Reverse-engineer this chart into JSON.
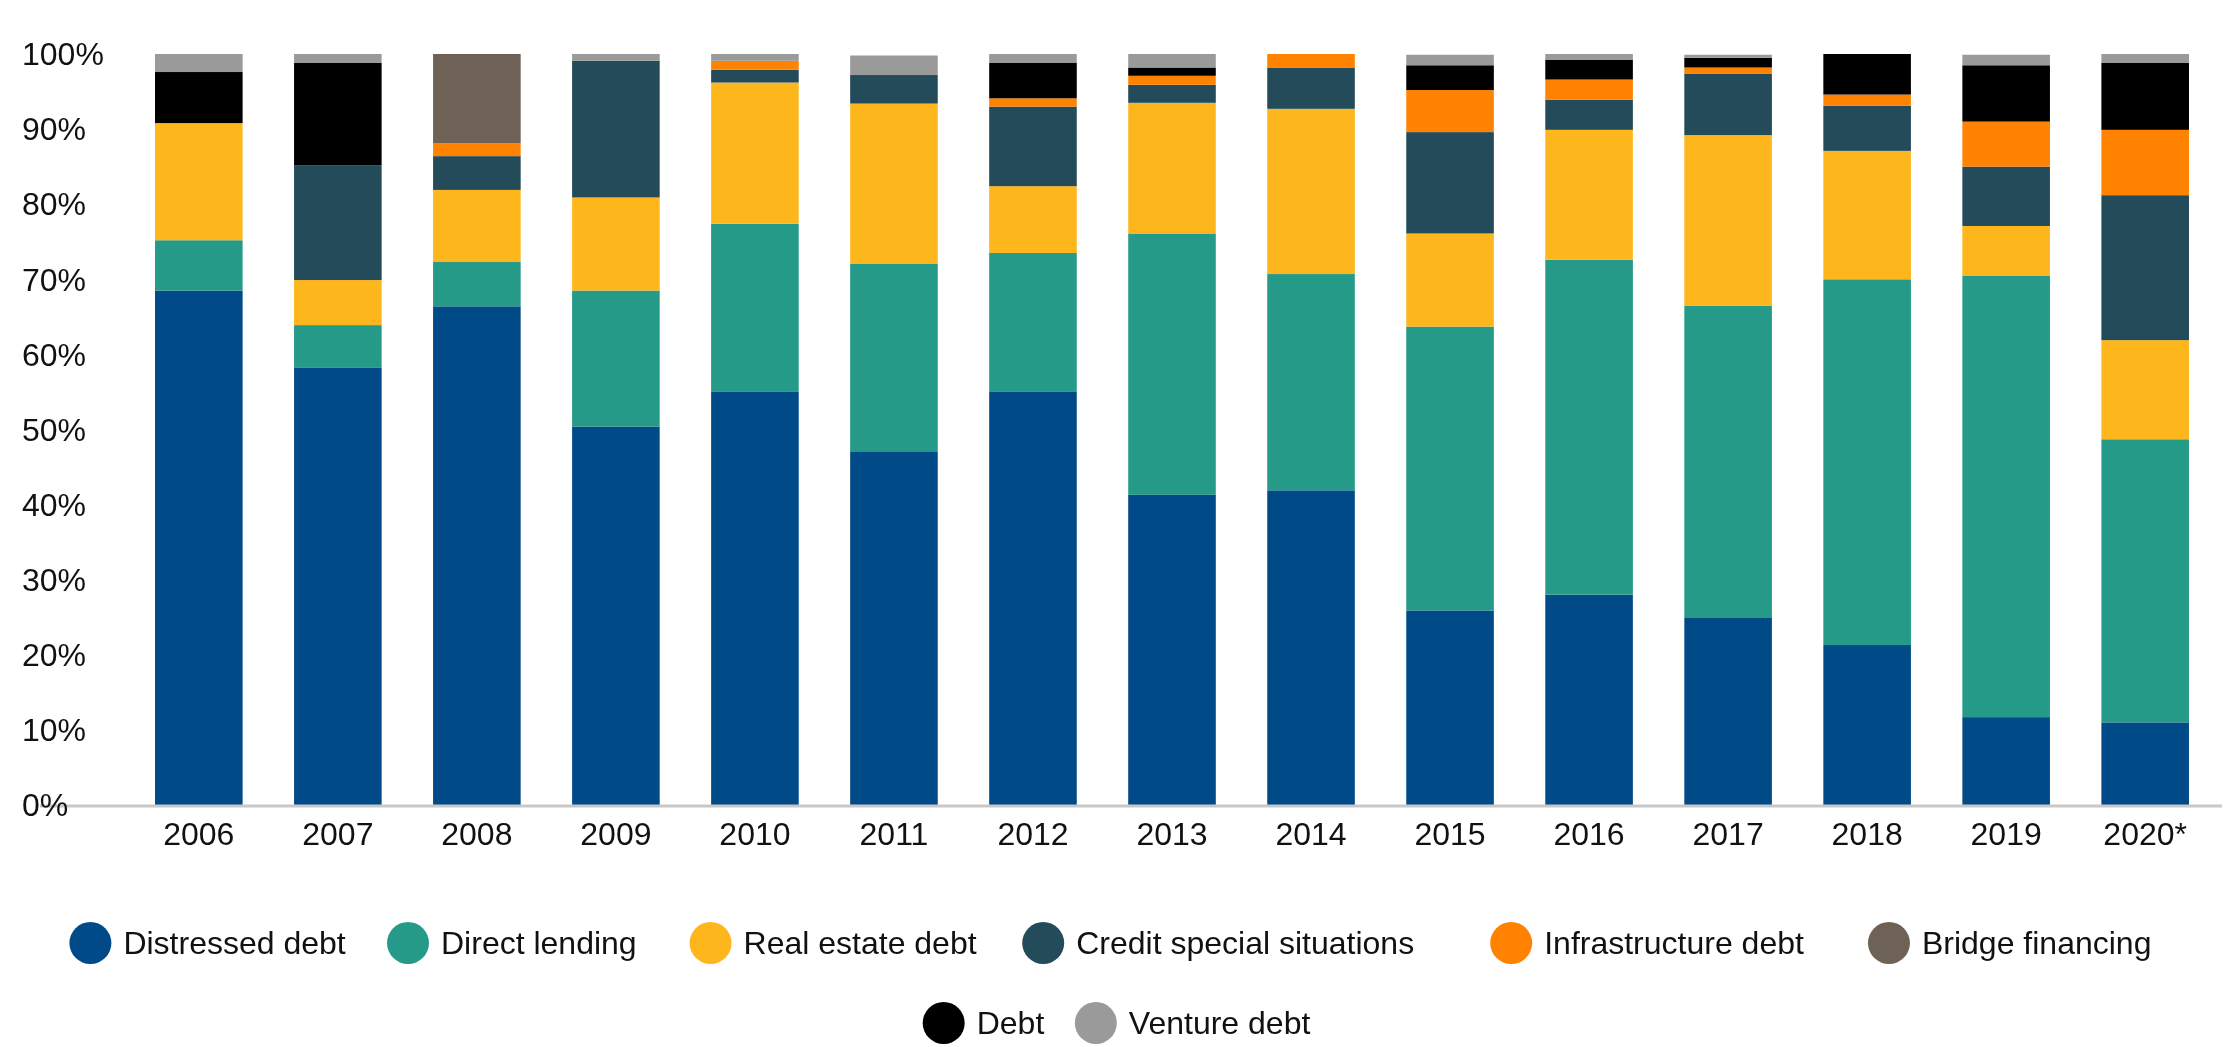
{
  "chart_data": {
    "type": "bar",
    "stacked": true,
    "categories": [
      "2006",
      "2007",
      "2008",
      "2009",
      "2010",
      "2011",
      "2012",
      "2013",
      "2014",
      "2015",
      "2016",
      "2017",
      "2018",
      "2019",
      "2020*"
    ],
    "series": [
      {
        "name": "Distressed debt",
        "color": "#004a87",
        "values": [
          68.5,
          58.2,
          66.4,
          50.4,
          55.0,
          47.1,
          55.0,
          41.3,
          41.9,
          25.9,
          28.0,
          24.9,
          21.3,
          11.7,
          11.0
        ]
      },
      {
        "name": "Direct lending",
        "color": "#269a88",
        "values": [
          6.7,
          5.7,
          5.9,
          18.1,
          22.4,
          25.0,
          18.5,
          34.8,
          28.8,
          37.8,
          44.6,
          41.6,
          48.7,
          58.8,
          37.7
        ]
      },
      {
        "name": "Real estate debt",
        "color": "#fdb71d",
        "values": [
          15.6,
          6.0,
          9.6,
          12.4,
          18.8,
          21.3,
          8.9,
          17.4,
          22.0,
          12.4,
          17.3,
          22.7,
          17.1,
          6.6,
          13.2
        ]
      },
      {
        "name": "Credit special situations",
        "color": "#244b5a",
        "values": [
          null,
          15.3,
          4.5,
          18.2,
          1.7,
          3.8,
          10.6,
          2.4,
          5.5,
          13.5,
          4.0,
          8.2,
          6.0,
          7.9,
          19.3
        ]
      },
      {
        "name": "Infrastructure debt",
        "color": "#ff8300",
        "values": [
          null,
          null,
          1.7,
          null,
          1.2,
          null,
          1.1,
          1.2,
          1.8,
          5.6,
          2.7,
          0.8,
          1.5,
          6.0,
          8.7
        ]
      },
      {
        "name": "Bridge financing",
        "color": "#6e6156",
        "values": [
          null,
          null,
          11.9,
          null,
          null,
          null,
          null,
          null,
          null,
          null,
          null,
          null,
          null,
          null,
          null
        ]
      },
      {
        "name": "Debt",
        "color": "#000000",
        "values": [
          6.8,
          13.6,
          null,
          null,
          null,
          null,
          4.7,
          1.1,
          null,
          3.3,
          2.6,
          1.3,
          5.4,
          7.5,
          8.9
        ]
      },
      {
        "name": "Venture debt",
        "color": "#9a9a9a",
        "values": [
          2.4,
          1.2,
          null,
          0.9,
          0.9,
          2.6,
          1.2,
          1.8,
          null,
          1.4,
          0.8,
          0.4,
          null,
          1.4,
          1.2
        ]
      }
    ],
    "ylim": [
      0,
      100
    ],
    "yticks": [
      {
        "value": 0,
        "label": "0%"
      },
      {
        "value": 10,
        "label": "10%"
      },
      {
        "value": 20,
        "label": "20%"
      },
      {
        "value": 30,
        "label": "30%"
      },
      {
        "value": 40,
        "label": "40%"
      },
      {
        "value": 50,
        "label": "50%"
      },
      {
        "value": 60,
        "label": "60%"
      },
      {
        "value": 70,
        "label": "70%"
      },
      {
        "value": 80,
        "label": "80%"
      },
      {
        "value": 90,
        "label": "90%"
      },
      {
        "value": 100,
        "label": "100%"
      }
    ],
    "legend": "bottom"
  }
}
